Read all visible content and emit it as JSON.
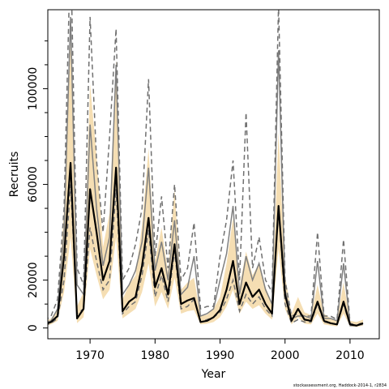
{
  "chart_data": {
    "type": "line",
    "title": "",
    "xlabel": "Year",
    "ylabel": "Recruits",
    "xlim": [
      1963.5,
      2014.5
    ],
    "ylim": [
      -4500,
      133000
    ],
    "x_ticks": [
      1970,
      1980,
      1990,
      2000,
      2010
    ],
    "y_ticks": [
      0,
      20000,
      60000,
      100000
    ],
    "x_tick_labels": [
      "1970",
      "1980",
      "1990",
      "2000",
      "2010"
    ],
    "y_tick_labels": [
      "0",
      "20000",
      "60000",
      "100000"
    ],
    "grid": false,
    "legend": "none",
    "colors": {
      "band": "#f5deb3",
      "estimate": "#000000",
      "retro": "#808080",
      "retro_dashed": "#707070"
    },
    "x": [
      1963,
      1964,
      1965,
      1966,
      1967,
      1968,
      1969,
      1970,
      1971,
      1972,
      1973,
      1974,
      1975,
      1976,
      1977,
      1978,
      1979,
      1980,
      1981,
      1982,
      1983,
      1984,
      1985,
      1986,
      1987,
      1988,
      1989,
      1990,
      1991,
      1992,
      1993,
      1994,
      1995,
      1996,
      1997,
      1998,
      1999,
      2000,
      2001,
      2002,
      2003,
      2004,
      2005,
      2006,
      2007,
      2008,
      2009,
      2010,
      2011,
      2012
    ],
    "series": [
      {
        "role": "estimate",
        "values": [
          1500,
          2500,
          5000,
          30000,
          69000,
          4000,
          8000,
          58000,
          40000,
          20000,
          28000,
          67000,
          7000,
          11000,
          13000,
          26000,
          46000,
          17000,
          25000,
          14000,
          35000,
          10000,
          11500,
          12500,
          2500,
          3000,
          4500,
          7500,
          16000,
          28000,
          10000,
          19000,
          13000,
          16000,
          10000,
          6000,
          51000,
          14000,
          3000,
          8000,
          3500,
          3000,
          11000,
          3000,
          2000,
          1500,
          11000,
          1500,
          1000,
          2000
        ]
      },
      {
        "role": "ci_lower",
        "values": [
          800,
          1500,
          3000,
          15000,
          38000,
          2000,
          4500,
          33000,
          22000,
          12000,
          16000,
          38000,
          4000,
          6000,
          8000,
          15000,
          27000,
          9000,
          15000,
          8000,
          21000,
          6000,
          7000,
          7500,
          1500,
          1800,
          2500,
          4500,
          9000,
          16000,
          6000,
          11000,
          8000,
          9500,
          6000,
          3500,
          33000,
          8000,
          1500,
          4500,
          1800,
          1500,
          6000,
          1500,
          1000,
          700,
          6000,
          700,
          400,
          1000
        ]
      },
      {
        "role": "ci_upper",
        "values": [
          2500,
          4000,
          8000,
          50000,
          120000,
          9000,
          15000,
          102000,
          72000,
          34000,
          48000,
          112000,
          12000,
          18000,
          22000,
          43000,
          75000,
          28000,
          42000,
          23000,
          58000,
          16000,
          19000,
          21000,
          5000,
          5500,
          8000,
          13000,
          27000,
          46000,
          17000,
          32000,
          22000,
          27000,
          17000,
          10000,
          82000,
          22000,
          6000,
          13000,
          6500,
          5500,
          18000,
          6000,
          4000,
          3000,
          19000,
          3000,
          2500,
          3500
        ]
      },
      {
        "role": "retro",
        "values": [
          2000,
          3000,
          8000,
          40000,
          130000,
          18000,
          14000,
          85000,
          50000,
          26000,
          38000,
          110000,
          14000,
          18000,
          24000,
          36000,
          67000,
          24000,
          36000,
          20000,
          45000,
          14000,
          17000,
          30000,
          5000,
          6000,
          8000,
          20000,
          31000,
          51000,
          14000,
          30000,
          20000,
          27000,
          16000,
          10000,
          116000,
          16000,
          4000,
          5000,
          5000,
          4000,
          28000,
          4000,
          4000,
          3000,
          27000,
          1500,
          1000,
          2000
        ]
      },
      {
        "role": "retro_dashed_1",
        "values": [
          3000,
          5000,
          12000,
          50000,
          160000,
          25000,
          18000,
          130000,
          70000,
          40000,
          80000,
          125000,
          20000,
          25000,
          35000,
          50000,
          104000,
          30000,
          55000,
          25000,
          60000,
          20000,
          25000,
          44000,
          8000,
          9000,
          9000,
          30000,
          45000,
          70000,
          20000,
          90000,
          25000,
          38000,
          20000,
          15000,
          135000,
          20000,
          5000,
          6000,
          5000,
          5000,
          40000,
          5000,
          5000,
          3500,
          37000,
          2000,
          1000,
          2500
        ]
      },
      {
        "role": "retro_dashed_2",
        "values": [
          1000,
          2000,
          4000,
          20000,
          60000,
          6000,
          8000,
          42000,
          28000,
          16000,
          20000,
          58000,
          6000,
          9000,
          11000,
          22000,
          41000,
          13000,
          22000,
          11000,
          32000,
          8000,
          9000,
          12000,
          2500,
          3500,
          4500,
          6500,
          12000,
          20000,
          7000,
          14000,
          10000,
          13000,
          8000,
          5000,
          50000,
          10000,
          2000,
          3500,
          2500,
          2500,
          10000,
          2500,
          2000,
          1500,
          10000,
          1000,
          1000,
          1500
        ]
      }
    ]
  },
  "footer": {
    "credit": "stockassessment.org, Haddock-2014-1, r2834"
  }
}
